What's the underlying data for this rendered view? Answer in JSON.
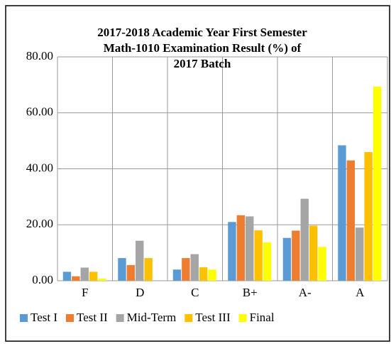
{
  "chart_data": {
    "type": "bar",
    "title": [
      "2017-2018 Academic Year First Semester",
      "Math-1010 Examination Result (%) of",
      "2017  Batch"
    ],
    "categories": [
      "F",
      "D",
      "C",
      "B+",
      "A-",
      "A"
    ],
    "series": [
      {
        "name": "Test I",
        "color": "#5b9bd5",
        "values": [
          3.2,
          8.1,
          4.0,
          21.0,
          15.3,
          48.4
        ]
      },
      {
        "name": "Test II",
        "color": "#ed7d31",
        "values": [
          1.6,
          5.6,
          8.1,
          23.4,
          17.9,
          43.0
        ]
      },
      {
        "name": "Mid-Term",
        "color": "#a5a5a5",
        "values": [
          4.7,
          14.3,
          9.5,
          23.0,
          29.3,
          19.0
        ]
      },
      {
        "name": "Test III",
        "color": "#ffc000",
        "values": [
          3.2,
          8.1,
          4.8,
          18.0,
          19.7,
          46.0
        ]
      },
      {
        "name": "Final",
        "color": "#ffff00",
        "values": [
          0.8,
          0,
          4.0,
          13.7,
          12.1,
          69.4
        ]
      }
    ],
    "ylim": [
      0,
      80
    ],
    "yticks": [
      {
        "value": 0,
        "label": "0.00"
      },
      {
        "value": 20,
        "label": "20.00"
      },
      {
        "value": 40,
        "label": "40.00"
      },
      {
        "value": 60,
        "label": "60.00"
      },
      {
        "value": 80,
        "label": "80.00"
      }
    ],
    "grid": true,
    "legend": "bottom"
  }
}
